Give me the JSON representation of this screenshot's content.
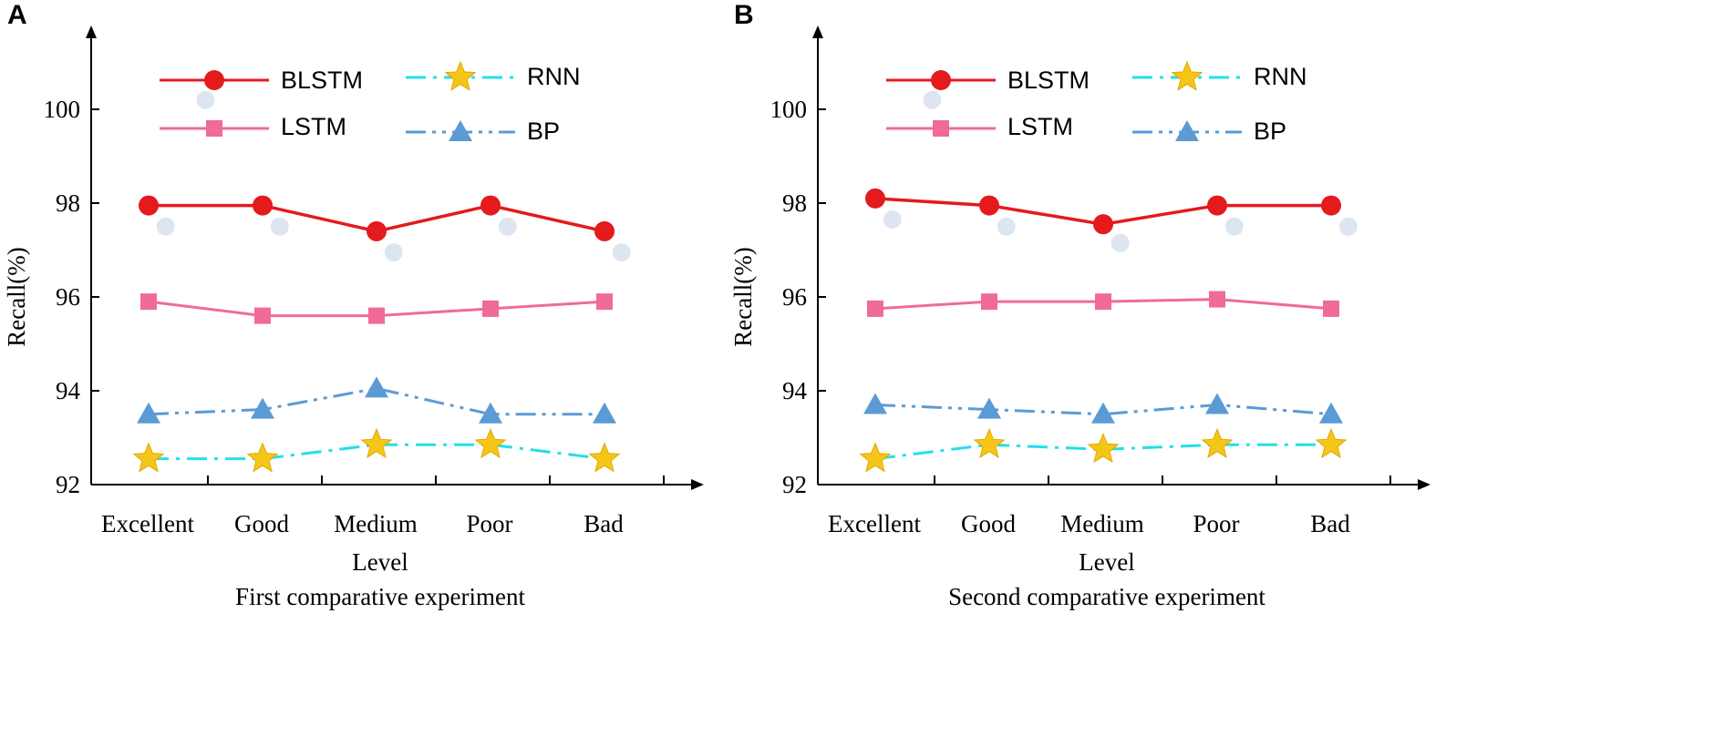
{
  "chart_data": [
    {
      "panel": "A",
      "type": "line",
      "categories": [
        "Excellent",
        "Good",
        "Medium",
        "Poor",
        "Bad"
      ],
      "ylabel": "Recall(%)",
      "xlabel": "Level",
      "caption": "First comparative experiment",
      "ylim": [
        92,
        102
      ],
      "yticks": [
        92,
        94,
        96,
        98,
        100
      ],
      "series": [
        {
          "name": "BLSTM",
          "values": [
            97.95,
            97.95,
            97.4,
            97.95,
            97.4
          ],
          "color": "#e41a1c",
          "marker": "circle",
          "dash": "solid"
        },
        {
          "name": "LSTM",
          "values": [
            95.9,
            95.6,
            95.6,
            95.75,
            95.9
          ],
          "color": "#f06a9a",
          "marker": "square",
          "dash": "solid"
        },
        {
          "name": "RNN",
          "values": [
            92.55,
            92.55,
            92.85,
            92.85,
            92.55
          ],
          "color": "#22e0e8",
          "marker": "star",
          "dash": "dashdot"
        },
        {
          "name": "BP",
          "values": [
            93.5,
            93.6,
            94.05,
            93.5,
            93.5
          ],
          "color": "#5b9bd5",
          "marker": "triangle",
          "dash": "dashdotdot"
        }
      ],
      "ghost_markers": [
        {
          "x": 0.5,
          "y": 100.2
        },
        {
          "x": 0.15,
          "y": 97.5
        },
        {
          "x": 1.15,
          "y": 97.5
        },
        {
          "x": 2.15,
          "y": 96.95
        },
        {
          "x": 3.15,
          "y": 97.5
        },
        {
          "x": 4.15,
          "y": 96.95
        }
      ]
    },
    {
      "panel": "B",
      "type": "line",
      "categories": [
        "Excellent",
        "Good",
        "Medium",
        "Poor",
        "Bad"
      ],
      "ylabel": "Recall(%)",
      "xlabel": "Level",
      "caption": "Second comparative experiment",
      "ylim": [
        92,
        102
      ],
      "yticks": [
        92,
        94,
        96,
        98,
        100
      ],
      "series": [
        {
          "name": "BLSTM",
          "values": [
            98.1,
            97.95,
            97.55,
            97.95,
            97.95
          ],
          "color": "#e41a1c",
          "marker": "circle",
          "dash": "solid"
        },
        {
          "name": "LSTM",
          "values": [
            95.75,
            95.9,
            95.9,
            95.95,
            95.75
          ],
          "color": "#f06a9a",
          "marker": "square",
          "dash": "solid"
        },
        {
          "name": "RNN",
          "values": [
            92.55,
            92.85,
            92.75,
            92.85,
            92.85
          ],
          "color": "#22e0e8",
          "marker": "star",
          "dash": "dashdot"
        },
        {
          "name": "BP",
          "values": [
            93.7,
            93.6,
            93.5,
            93.7,
            93.5
          ],
          "color": "#5b9bd5",
          "marker": "triangle",
          "dash": "dashdotdot"
        }
      ],
      "ghost_markers": [
        {
          "x": 0.5,
          "y": 100.2
        },
        {
          "x": 0.15,
          "y": 97.65
        },
        {
          "x": 1.15,
          "y": 97.5
        },
        {
          "x": 2.15,
          "y": 97.15
        },
        {
          "x": 3.15,
          "y": 97.5
        },
        {
          "x": 4.15,
          "y": 97.5
        }
      ]
    }
  ]
}
